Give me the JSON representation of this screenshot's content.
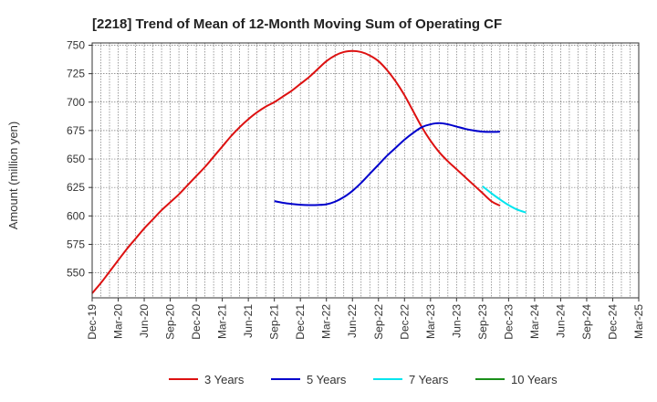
{
  "chart_data": {
    "type": "line",
    "title": "[2218]  Trend of Mean of 12-Month Moving Sum of Operating CF",
    "xlabel": "",
    "ylabel": "Amount (million yen)",
    "ylim": [
      528,
      752
    ],
    "yticks": [
      550,
      575,
      600,
      625,
      650,
      675,
      700,
      725,
      750
    ],
    "grid": true,
    "x_categories": [
      "Dec-19",
      "Jan-20",
      "Feb-20",
      "Mar-20",
      "Apr-20",
      "May-20",
      "Jun-20",
      "Jul-20",
      "Aug-20",
      "Sep-20",
      "Oct-20",
      "Nov-20",
      "Dec-20",
      "Jan-21",
      "Feb-21",
      "Mar-21",
      "Apr-21",
      "May-21",
      "Jun-21",
      "Jul-21",
      "Aug-21",
      "Sep-21",
      "Oct-21",
      "Nov-21",
      "Dec-21",
      "Jan-22",
      "Feb-22",
      "Mar-22",
      "Apr-22",
      "May-22",
      "Jun-22",
      "Jul-22",
      "Aug-22",
      "Sep-22",
      "Oct-22",
      "Nov-22",
      "Dec-22",
      "Jan-23",
      "Feb-23",
      "Mar-23",
      "Apr-23",
      "May-23",
      "Jun-23",
      "Jul-23",
      "Aug-23",
      "Sep-23",
      "Oct-23",
      "Nov-23",
      "Dec-23",
      "Jan-24",
      "Feb-24",
      "Mar-24",
      "Apr-24",
      "May-24",
      "Jun-24",
      "Jul-24",
      "Aug-24",
      "Sep-24",
      "Oct-24",
      "Nov-24",
      "Dec-24",
      "Jan-25",
      "Feb-25",
      "Mar-25"
    ],
    "x_tick_labels": [
      "Dec-19",
      "Mar-20",
      "Jun-20",
      "Sep-20",
      "Dec-20",
      "Mar-21",
      "Jun-21",
      "Sep-21",
      "Dec-21",
      "Mar-22",
      "Jun-22",
      "Sep-22",
      "Dec-22",
      "Mar-23",
      "Jun-23",
      "Sep-23",
      "Dec-23",
      "Mar-24",
      "Jun-24",
      "Sep-24",
      "Dec-24",
      "Mar-25"
    ],
    "series": [
      {
        "name": "3 Years",
        "color": "#dd1111",
        "start_index": 0,
        "values": [
          532,
          541,
          551,
          561,
          571,
          580,
          589,
          597,
          605,
          612,
          619,
          627,
          635,
          643,
          652,
          661,
          670,
          678,
          685,
          691,
          696,
          700,
          705,
          710,
          716,
          722,
          729,
          736,
          741,
          744,
          745,
          744,
          741,
          736,
          728,
          718,
          706,
          692,
          678,
          666,
          656,
          648,
          641,
          634,
          627,
          620,
          613,
          609
        ]
      },
      {
        "name": "5 Years",
        "color": "#0000cc",
        "start_index": 21,
        "values": [
          613,
          611.5,
          610.5,
          609.8,
          609.5,
          609.6,
          610.2,
          612.5,
          616.5,
          622,
          629,
          637,
          645,
          653,
          660,
          667,
          673,
          678,
          680.5,
          681.5,
          680.5,
          678.5,
          676.5,
          675,
          674,
          673.8,
          674
        ]
      },
      {
        "name": "7 Years",
        "color": "#00e5ee",
        "start_index": 45,
        "values": [
          626,
          620,
          614.5,
          609.5,
          605.5,
          603
        ]
      },
      {
        "name": "10 Years",
        "color": "#1a8f1a",
        "start_index": 0,
        "values": []
      }
    ],
    "legend_position": "bottom-center"
  }
}
